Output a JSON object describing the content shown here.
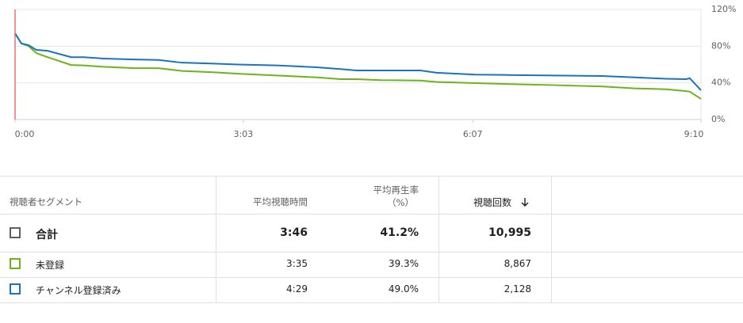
{
  "chart_data": {
    "type": "line",
    "x": [
      0,
      5,
      11,
      17,
      26,
      45,
      55,
      71,
      96,
      115,
      134,
      160,
      179,
      210,
      242,
      261,
      274,
      293,
      325,
      338,
      369,
      401,
      433,
      471,
      497,
      522,
      538,
      541,
      550
    ],
    "xlim": [
      0,
      550
    ],
    "xticks": [
      {
        "value": 0,
        "label": "0:00"
      },
      {
        "value": 183,
        "label": "3:03"
      },
      {
        "value": 367,
        "label": "6:07"
      },
      {
        "value": 550,
        "label": "9:10"
      }
    ],
    "ylim": [
      0,
      120
    ],
    "yticks": [
      {
        "value": 0,
        "label": "0%"
      },
      {
        "value": 40,
        "label": "40%"
      },
      {
        "value": 80,
        "label": "80%"
      },
      {
        "value": 120,
        "label": "120%"
      }
    ],
    "grid": true,
    "series": [
      {
        "color": "#6fb31a",
        "values": [
          94,
          83,
          80,
          72.5,
          68,
          59.5,
          59,
          57.5,
          56,
          56,
          53,
          51.5,
          50,
          48,
          46,
          44,
          44,
          43,
          42.5,
          41,
          39.7,
          38.5,
          37.5,
          36,
          34,
          33,
          31,
          30.5,
          22.5
        ]
      },
      {
        "color": "#1a73c0",
        "values": [
          94,
          83,
          81,
          76,
          75,
          68,
          68,
          66.5,
          65.5,
          65,
          62,
          61,
          60,
          59,
          57,
          55,
          53.5,
          53.5,
          53.5,
          51,
          49,
          48.5,
          48,
          47.5,
          46,
          44.5,
          44,
          45,
          32
        ]
      }
    ]
  },
  "table": {
    "headers": [
      "視聴者セグメント",
      "平均視聴時間",
      "平均再生率",
      "（%）",
      "視聴回数"
    ],
    "rows": [
      [
        "合計",
        "3:46",
        "41.2%",
        "10,995"
      ],
      [
        "未登録",
        "3:35",
        "39.3%",
        "8,867"
      ],
      [
        "チャンネル登録済み",
        "4:29",
        "49.0%",
        "2,128"
      ]
    ]
  }
}
